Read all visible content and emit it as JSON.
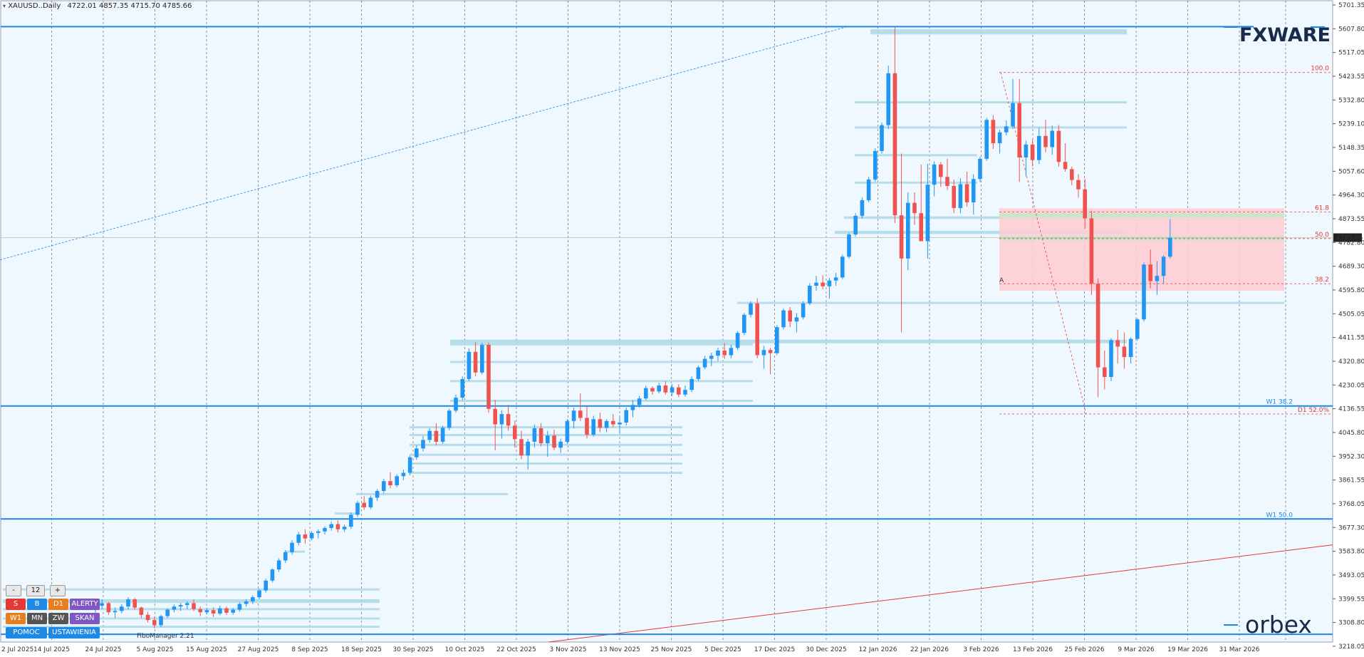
{
  "header": {
    "symbol": "XAUUSD..Daily",
    "ohlc": "4722.01 4857.35 4715.70 4785.66"
  },
  "brand": {
    "logo_top": "FXWARE",
    "logo_bottom": "orbex"
  },
  "indicator_label": "FiboManager 2.21",
  "controls": {
    "minus": "-",
    "value": "12",
    "plus": "+",
    "row1": [
      "S",
      "B",
      "D1",
      "ALERTY"
    ],
    "row2": [
      "W1",
      "MN",
      "ZW",
      "SKAN"
    ],
    "row3": [
      "POMOC",
      "USTAWIENIA"
    ]
  },
  "colors": {
    "bull": "#2196f3",
    "bear": "#ef5350",
    "zone": "#add8e6",
    "fibo": "#e53935",
    "level": "#1e88e5",
    "background": "#f0f8ff"
  },
  "chart_data": {
    "type": "candlestick",
    "ylim": [
      3225,
      5700
    ],
    "y_ticks": [
      "5701.35",
      "5607.80",
      "5517.05",
      "5423.55",
      "5332.80",
      "5239.10",
      "5148.35",
      "5057.60",
      "4964.30",
      "4873.55",
      "4782.80",
      "4689.30",
      "4595.80",
      "4505.05",
      "4411.55",
      "4320.80",
      "4230.05",
      "4136.55",
      "4045.80",
      "3952.30",
      "3861.55",
      "3768.05",
      "3677.30",
      "3583.80",
      "3493.05",
      "3399.55",
      "3308.80",
      "3218.05"
    ],
    "current_price": "4785.66",
    "x_ticks": [
      "2 Jul 2025",
      "14 Jul 2025",
      "24 Jul 2025",
      "5 Aug 2025",
      "15 Aug 2025",
      "27 Aug 2025",
      "8 Sep 2025",
      "18 Sep 2025",
      "30 Sep 2025",
      "10 Oct 2025",
      "22 Oct 2025",
      "3 Nov 2025",
      "13 Nov 2025",
      "25 Nov 2025",
      "5 Dec 2025",
      "17 Dec 2025",
      "30 Dec 2025",
      "12 Jan 2026",
      "22 Jan 2026",
      "3 Feb 2026",
      "13 Feb 2026",
      "25 Feb 2026",
      "9 Mar 2026",
      "19 Mar 2026",
      "31 Mar 2026"
    ],
    "candles": [
      [
        3350,
        3372,
        3338,
        3365
      ],
      [
        3365,
        3390,
        3352,
        3375
      ],
      [
        3375,
        3380,
        3330,
        3340
      ],
      [
        3340,
        3358,
        3318,
        3345
      ],
      [
        3345,
        3372,
        3336,
        3362
      ],
      [
        3362,
        3398,
        3350,
        3390
      ],
      [
        3390,
        3395,
        3350,
        3358
      ],
      [
        3358,
        3362,
        3318,
        3330
      ],
      [
        3330,
        3342,
        3300,
        3310
      ],
      [
        3310,
        3322,
        3278,
        3290
      ],
      [
        3290,
        3330,
        3282,
        3325
      ],
      [
        3325,
        3355,
        3318,
        3350
      ],
      [
        3350,
        3370,
        3340,
        3362
      ],
      [
        3362,
        3375,
        3345,
        3368
      ],
      [
        3368,
        3382,
        3352,
        3375
      ],
      [
        3375,
        3390,
        3345,
        3352
      ],
      [
        3352,
        3362,
        3325,
        3340
      ],
      [
        3340,
        3356,
        3332,
        3348
      ],
      [
        3348,
        3358,
        3322,
        3335
      ],
      [
        3335,
        3365,
        3328,
        3355
      ],
      [
        3355,
        3362,
        3330,
        3338
      ],
      [
        3338,
        3356,
        3330,
        3350
      ],
      [
        3350,
        3378,
        3342,
        3372
      ],
      [
        3372,
        3390,
        3362,
        3382
      ],
      [
        3382,
        3405,
        3372,
        3398
      ],
      [
        3398,
        3430,
        3390,
        3424
      ],
      [
        3424,
        3470,
        3416,
        3462
      ],
      [
        3462,
        3510,
        3455,
        3505
      ],
      [
        3505,
        3548,
        3495,
        3540
      ],
      [
        3540,
        3580,
        3530,
        3572
      ],
      [
        3572,
        3618,
        3562,
        3608
      ],
      [
        3608,
        3650,
        3598,
        3640
      ],
      [
        3640,
        3660,
        3605,
        3625
      ],
      [
        3625,
        3652,
        3618,
        3646
      ],
      [
        3646,
        3660,
        3625,
        3652
      ],
      [
        3652,
        3672,
        3640,
        3665
      ],
      [
        3665,
        3690,
        3655,
        3680
      ],
      [
        3680,
        3695,
        3648,
        3660
      ],
      [
        3660,
        3678,
        3650,
        3670
      ],
      [
        3670,
        3725,
        3662,
        3716
      ],
      [
        3716,
        3770,
        3708,
        3762
      ],
      [
        3762,
        3788,
        3735,
        3745
      ],
      [
        3745,
        3790,
        3738,
        3782
      ],
      [
        3782,
        3815,
        3770,
        3808
      ],
      [
        3808,
        3855,
        3798,
        3846
      ],
      [
        3846,
        3880,
        3818,
        3830
      ],
      [
        3830,
        3872,
        3822,
        3865
      ],
      [
        3865,
        3890,
        3850,
        3878
      ],
      [
        3878,
        3945,
        3868,
        3938
      ],
      [
        3938,
        3985,
        3928,
        3972
      ],
      [
        3972,
        4020,
        3960,
        4005
      ],
      [
        4005,
        4050,
        3995,
        4040
      ],
      [
        4040,
        4070,
        3985,
        3998
      ],
      [
        3998,
        4060,
        3990,
        4052
      ],
      [
        4052,
        4125,
        4042,
        4118
      ],
      [
        4118,
        4180,
        4110,
        4168
      ],
      [
        4168,
        4250,
        4158,
        4240
      ],
      [
        4240,
        4358,
        4232,
        4345
      ],
      [
        4345,
        4382,
        4250,
        4265
      ],
      [
        4265,
        4380,
        4258,
        4372
      ],
      [
        4372,
        4381,
        4110,
        4125
      ],
      [
        4125,
        4160,
        3965,
        4065
      ],
      [
        4065,
        4120,
        4010,
        4105
      ],
      [
        4105,
        4140,
        4040,
        4060
      ],
      [
        4060,
        4080,
        3975,
        4008
      ],
      [
        4008,
        4040,
        3930,
        3945
      ],
      [
        3945,
        4010,
        3890,
        3998
      ],
      [
        3998,
        4065,
        3975,
        4050
      ],
      [
        4050,
        4070,
        3980,
        3992
      ],
      [
        3992,
        4040,
        3940,
        4022
      ],
      [
        4022,
        4045,
        3965,
        3975
      ],
      [
        3975,
        4010,
        3955,
        3998
      ],
      [
        3998,
        4085,
        3990,
        4078
      ],
      [
        4078,
        4130,
        4050,
        4118
      ],
      [
        4118,
        4185,
        4078,
        4090
      ],
      [
        4090,
        4138,
        4010,
        4025
      ],
      [
        4025,
        4098,
        4018,
        4085
      ],
      [
        4085,
        4110,
        4035,
        4052
      ],
      [
        4052,
        4085,
        4035,
        4078
      ],
      [
        4078,
        4105,
        4055,
        4065
      ],
      [
        4065,
        4092,
        4030,
        4072
      ],
      [
        4072,
        4130,
        4060,
        4120
      ],
      [
        4120,
        4158,
        4092,
        4140
      ],
      [
        4140,
        4175,
        4130,
        4165
      ],
      [
        4165,
        4215,
        4158,
        4205
      ],
      [
        4205,
        4212,
        4180,
        4192
      ],
      [
        4192,
        4225,
        4185,
        4215
      ],
      [
        4215,
        4232,
        4180,
        4188
      ],
      [
        4188,
        4220,
        4175,
        4208
      ],
      [
        4208,
        4220,
        4170,
        4180
      ],
      [
        4180,
        4215,
        4172,
        4198
      ],
      [
        4198,
        4250,
        4190,
        4240
      ],
      [
        4240,
        4292,
        4232,
        4285
      ],
      [
        4285,
        4330,
        4278,
        4318
      ],
      [
        4318,
        4342,
        4290,
        4330
      ],
      [
        4330,
        4360,
        4310,
        4350
      ],
      [
        4350,
        4378,
        4318,
        4332
      ],
      [
        4332,
        4372,
        4320,
        4360
      ],
      [
        4360,
        4425,
        4352,
        4418
      ],
      [
        4418,
        4495,
        4410,
        4488
      ],
      [
        4488,
        4540,
        4478,
        4532
      ],
      [
        4532,
        4552,
        4320,
        4332
      ],
      [
        4332,
        4368,
        4280,
        4352
      ],
      [
        4352,
        4360,
        4258,
        4340
      ],
      [
        4340,
        4448,
        4332,
        4440
      ],
      [
        4440,
        4512,
        4432,
        4505
      ],
      [
        4505,
        4518,
        4440,
        4462
      ],
      [
        4462,
        4495,
        4420,
        4478
      ],
      [
        4478,
        4540,
        4470,
        4532
      ],
      [
        4532,
        4610,
        4525,
        4600
      ],
      [
        4600,
        4638,
        4580,
        4612
      ],
      [
        4612,
        4640,
        4585,
        4598
      ],
      [
        4598,
        4630,
        4550,
        4620
      ],
      [
        4620,
        4650,
        4600,
        4632
      ],
      [
        4632,
        4720,
        4625,
        4712
      ],
      [
        4712,
        4805,
        4705,
        4798
      ],
      [
        4798,
        4880,
        4790,
        4870
      ],
      [
        4870,
        4940,
        4860,
        4930
      ],
      [
        4930,
        5020,
        4922,
        5010
      ],
      [
        5010,
        5130,
        5002,
        5120
      ],
      [
        5120,
        5230,
        5110,
        5220
      ],
      [
        5220,
        5450,
        5205,
        5420
      ],
      [
        5420,
        5600,
        4842,
        4872
      ],
      [
        4872,
        5110,
        4420,
        4705
      ],
      [
        4705,
        4960,
        4660,
        4920
      ],
      [
        4920,
        4960,
        4835,
        4880
      ],
      [
        4880,
        5068,
        4795,
        4772
      ],
      [
        4772,
        5070,
        4705,
        4990
      ],
      [
        4990,
        5080,
        4945,
        5068
      ],
      [
        5068,
        5078,
        4982,
        5020
      ],
      [
        5020,
        5090,
        4970,
        4985
      ],
      [
        4985,
        5010,
        4880,
        4900
      ],
      [
        4900,
        5015,
        4880,
        4992
      ],
      [
        4992,
        5040,
        4905,
        4922
      ],
      [
        4922,
        5030,
        4875,
        5012
      ],
      [
        5012,
        5098,
        5000,
        5090
      ],
      [
        5090,
        5248,
        5082,
        5240
      ],
      [
        5240,
        5258,
        5128,
        5150
      ],
      [
        5150,
        5202,
        5110,
        5192
      ],
      [
        5192,
        5238,
        5180,
        5215
      ],
      [
        5215,
        5398,
        5205,
        5305
      ],
      [
        5305,
        5398,
        5000,
        5095
      ],
      [
        5095,
        5160,
        5022,
        5145
      ],
      [
        5145,
        5165,
        5060,
        5085
      ],
      [
        5085,
        5210,
        5070,
        5178
      ],
      [
        5178,
        5240,
        5115,
        5135
      ],
      [
        5135,
        5218,
        5105,
        5198
      ],
      [
        5198,
        5220,
        5060,
        5078
      ],
      [
        5078,
        5150,
        5040,
        5050
      ],
      [
        5050,
        5060,
        4988,
        5008
      ],
      [
        5008,
        5030,
        4940,
        4972
      ],
      [
        4972,
        5012,
        4820,
        4860
      ],
      [
        4860,
        4890,
        4565,
        4608
      ],
      [
        4608,
        4628,
        4170,
        4285
      ],
      [
        4285,
        4350,
        4200,
        4248
      ],
      [
        4248,
        4398,
        4232,
        4390
      ],
      [
        4390,
        4430,
        4300,
        4365
      ],
      [
        4365,
        4420,
        4280,
        4325
      ],
      [
        4325,
        4400,
        4300,
        4395
      ],
      [
        4395,
        4475,
        4388,
        4470
      ],
      [
        4470,
        4690,
        4462,
        4682
      ],
      [
        4682,
        4740,
        4590,
        4618
      ],
      [
        4618,
        4695,
        4565,
        4638
      ],
      [
        4638,
        4718,
        4608,
        4712
      ],
      [
        4712,
        4857,
        4705,
        4785
      ]
    ],
    "zones": [
      {
        "p1": 5590,
        "p2": 5570
      },
      {
        "p1": 5312,
        "p2": 5305
      },
      {
        "p1": 5215,
        "p2": 5210
      },
      {
        "p1": 5108,
        "p2": 5103
      },
      {
        "p1": 5002,
        "p2": 4997
      },
      {
        "p1": 4868,
        "p2": 4858
      },
      {
        "p1": 4812,
        "p2": 4800
      },
      {
        "p1": 4538,
        "p2": 4530
      },
      {
        "p1": 4392,
        "p2": 4378
      },
      {
        "p1": 4378,
        "p2": 4374
      },
      {
        "p1": 4310,
        "p2": 4307
      },
      {
        "p1": 4236,
        "p2": 4233
      },
      {
        "p1": 4160,
        "p2": 4157
      },
      {
        "p1": 4058,
        "p2": 4055
      },
      {
        "p1": 4028,
        "p2": 4025
      },
      {
        "p1": 3990,
        "p2": 3987
      },
      {
        "p1": 3952,
        "p2": 3949
      },
      {
        "p1": 3918,
        "p2": 3915
      },
      {
        "p1": 3882,
        "p2": 3879
      },
      {
        "p1": 3800,
        "p2": 3797
      },
      {
        "p1": 3725,
        "p2": 3722
      },
      {
        "p1": 3578,
        "p2": 3570
      },
      {
        "p1": 3432,
        "p2": 3428
      },
      {
        "p1": 3390,
        "p2": 3376
      },
      {
        "p1": 3356,
        "p2": 3353
      },
      {
        "p1": 3320,
        "p2": 3317
      },
      {
        "p1": 3288,
        "p2": 3285
      }
    ],
    "horizontal_levels": [
      {
        "price": 5600,
        "label": ""
      },
      {
        "price": 4136,
        "label": "W1 38.2"
      },
      {
        "price": 3700,
        "label": "W1 50.0"
      },
      {
        "price": 3255,
        "label": ""
      }
    ],
    "fibo": {
      "levels": [
        {
          "label": "100.0",
          "price": 5423
        },
        {
          "label": "61.8",
          "price": 4885
        },
        {
          "label": "50.0",
          "price": 4782
        },
        {
          "label": "38.2",
          "price": 4608
        },
        {
          "label": "D1 52.0%",
          "price": 4105
        }
      ],
      "zone_label": "A"
    },
    "current_close": 4785.66
  }
}
